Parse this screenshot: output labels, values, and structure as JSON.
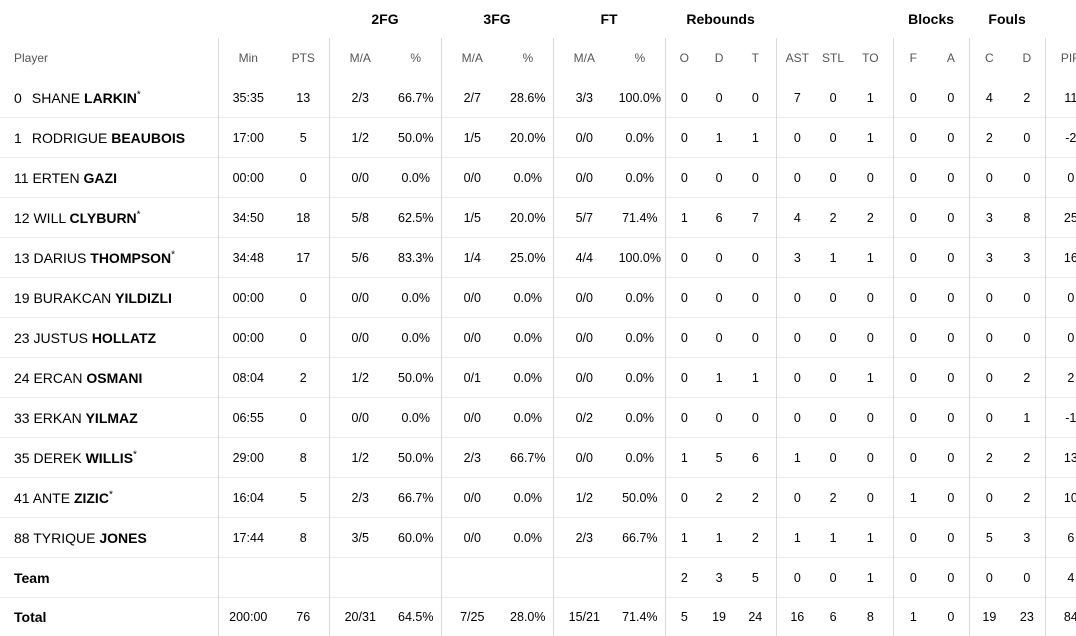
{
  "groups": {
    "fg2": "2FG",
    "fg3": "3FG",
    "ft": "FT",
    "reb": "Rebounds",
    "blk": "Blocks",
    "fouls": "Fouls"
  },
  "columns": {
    "player": "Player",
    "min": "Min",
    "pts": "PTS",
    "fg2_ma": "M/A",
    "fg2_pct": "%",
    "fg3_ma": "M/A",
    "fg3_pct": "%",
    "ft_ma": "M/A",
    "ft_pct": "%",
    "reb_o": "O",
    "reb_d": "D",
    "reb_t": "T",
    "ast": "AST",
    "stl": "STL",
    "to": "TO",
    "blk_f": "F",
    "blk_a": "A",
    "foul_c": "C",
    "foul_d": "D",
    "pir": "PIR"
  },
  "players": [
    {
      "number": "0",
      "first": "SHANE",
      "last": "LARKIN",
      "star": "*",
      "min": "35:35",
      "pts": "13",
      "fg2_ma": "2/3",
      "fg2_pct": "66.7%",
      "fg3_ma": "2/7",
      "fg3_pct": "28.6%",
      "ft_ma": "3/3",
      "ft_pct": "100.0%",
      "reb_o": "0",
      "reb_d": "0",
      "reb_t": "0",
      "ast": "7",
      "stl": "0",
      "to": "1",
      "blk_f": "0",
      "blk_a": "0",
      "foul_c": "4",
      "foul_d": "2",
      "pir": "11"
    },
    {
      "number": "1",
      "first": "RODRIGUE",
      "last": "BEAUBOIS",
      "star": "",
      "min": "17:00",
      "pts": "5",
      "fg2_ma": "1/2",
      "fg2_pct": "50.0%",
      "fg3_ma": "1/5",
      "fg3_pct": "20.0%",
      "ft_ma": "0/0",
      "ft_pct": "0.0%",
      "reb_o": "0",
      "reb_d": "1",
      "reb_t": "1",
      "ast": "0",
      "stl": "0",
      "to": "1",
      "blk_f": "0",
      "blk_a": "0",
      "foul_c": "2",
      "foul_d": "0",
      "pir": "-2"
    },
    {
      "number": "11",
      "first": "ERTEN",
      "last": "GAZI",
      "star": "",
      "min": "00:00",
      "pts": "0",
      "fg2_ma": "0/0",
      "fg2_pct": "0.0%",
      "fg3_ma": "0/0",
      "fg3_pct": "0.0%",
      "ft_ma": "0/0",
      "ft_pct": "0.0%",
      "reb_o": "0",
      "reb_d": "0",
      "reb_t": "0",
      "ast": "0",
      "stl": "0",
      "to": "0",
      "blk_f": "0",
      "blk_a": "0",
      "foul_c": "0",
      "foul_d": "0",
      "pir": "0"
    },
    {
      "number": "12",
      "first": "WILL",
      "last": "CLYBURN",
      "star": "*",
      "min": "34:50",
      "pts": "18",
      "fg2_ma": "5/8",
      "fg2_pct": "62.5%",
      "fg3_ma": "1/5",
      "fg3_pct": "20.0%",
      "ft_ma": "5/7",
      "ft_pct": "71.4%",
      "reb_o": "1",
      "reb_d": "6",
      "reb_t": "7",
      "ast": "4",
      "stl": "2",
      "to": "2",
      "blk_f": "0",
      "blk_a": "0",
      "foul_c": "3",
      "foul_d": "8",
      "pir": "25"
    },
    {
      "number": "13",
      "first": "DARIUS",
      "last": "THOMPSON",
      "star": "*",
      "min": "34:48",
      "pts": "17",
      "fg2_ma": "5/6",
      "fg2_pct": "83.3%",
      "fg3_ma": "1/4",
      "fg3_pct": "25.0%",
      "ft_ma": "4/4",
      "ft_pct": "100.0%",
      "reb_o": "0",
      "reb_d": "0",
      "reb_t": "0",
      "ast": "3",
      "stl": "1",
      "to": "1",
      "blk_f": "0",
      "blk_a": "0",
      "foul_c": "3",
      "foul_d": "3",
      "pir": "16"
    },
    {
      "number": "19",
      "first": "BURAKCAN",
      "last": "YILDIZLI",
      "star": "",
      "min": "00:00",
      "pts": "0",
      "fg2_ma": "0/0",
      "fg2_pct": "0.0%",
      "fg3_ma": "0/0",
      "fg3_pct": "0.0%",
      "ft_ma": "0/0",
      "ft_pct": "0.0%",
      "reb_o": "0",
      "reb_d": "0",
      "reb_t": "0",
      "ast": "0",
      "stl": "0",
      "to": "0",
      "blk_f": "0",
      "blk_a": "0",
      "foul_c": "0",
      "foul_d": "0",
      "pir": "0"
    },
    {
      "number": "23",
      "first": "JUSTUS",
      "last": "HOLLATZ",
      "star": "",
      "min": "00:00",
      "pts": "0",
      "fg2_ma": "0/0",
      "fg2_pct": "0.0%",
      "fg3_ma": "0/0",
      "fg3_pct": "0.0%",
      "ft_ma": "0/0",
      "ft_pct": "0.0%",
      "reb_o": "0",
      "reb_d": "0",
      "reb_t": "0",
      "ast": "0",
      "stl": "0",
      "to": "0",
      "blk_f": "0",
      "blk_a": "0",
      "foul_c": "0",
      "foul_d": "0",
      "pir": "0"
    },
    {
      "number": "24",
      "first": "ERCAN",
      "last": "OSMANI",
      "star": "",
      "min": "08:04",
      "pts": "2",
      "fg2_ma": "1/2",
      "fg2_pct": "50.0%",
      "fg3_ma": "0/1",
      "fg3_pct": "0.0%",
      "ft_ma": "0/0",
      "ft_pct": "0.0%",
      "reb_o": "0",
      "reb_d": "1",
      "reb_t": "1",
      "ast": "0",
      "stl": "0",
      "to": "1",
      "blk_f": "0",
      "blk_a": "0",
      "foul_c": "0",
      "foul_d": "2",
      "pir": "2"
    },
    {
      "number": "33",
      "first": "ERKAN",
      "last": "YILMAZ",
      "star": "",
      "min": "06:55",
      "pts": "0",
      "fg2_ma": "0/0",
      "fg2_pct": "0.0%",
      "fg3_ma": "0/0",
      "fg3_pct": "0.0%",
      "ft_ma": "0/2",
      "ft_pct": "0.0%",
      "reb_o": "0",
      "reb_d": "0",
      "reb_t": "0",
      "ast": "0",
      "stl": "0",
      "to": "0",
      "blk_f": "0",
      "blk_a": "0",
      "foul_c": "0",
      "foul_d": "1",
      "pir": "-1"
    },
    {
      "number": "35",
      "first": "DEREK",
      "last": "WILLIS",
      "star": "*",
      "min": "29:00",
      "pts": "8",
      "fg2_ma": "1/2",
      "fg2_pct": "50.0%",
      "fg3_ma": "2/3",
      "fg3_pct": "66.7%",
      "ft_ma": "0/0",
      "ft_pct": "0.0%",
      "reb_o": "1",
      "reb_d": "5",
      "reb_t": "6",
      "ast": "1",
      "stl": "0",
      "to": "0",
      "blk_f": "0",
      "blk_a": "0",
      "foul_c": "2",
      "foul_d": "2",
      "pir": "13"
    },
    {
      "number": "41",
      "first": "ANTE",
      "last": "ZIZIC",
      "star": "*",
      "min": "16:04",
      "pts": "5",
      "fg2_ma": "2/3",
      "fg2_pct": "66.7%",
      "fg3_ma": "0/0",
      "fg3_pct": "0.0%",
      "ft_ma": "1/2",
      "ft_pct": "50.0%",
      "reb_o": "0",
      "reb_d": "2",
      "reb_t": "2",
      "ast": "0",
      "stl": "2",
      "to": "0",
      "blk_f": "1",
      "blk_a": "0",
      "foul_c": "0",
      "foul_d": "2",
      "pir": "10"
    },
    {
      "number": "88",
      "first": "TYRIQUE",
      "last": "JONES",
      "star": "",
      "min": "17:44",
      "pts": "8",
      "fg2_ma": "3/5",
      "fg2_pct": "60.0%",
      "fg3_ma": "0/0",
      "fg3_pct": "0.0%",
      "ft_ma": "2/3",
      "ft_pct": "66.7%",
      "reb_o": "1",
      "reb_d": "1",
      "reb_t": "2",
      "ast": "1",
      "stl": "1",
      "to": "1",
      "blk_f": "0",
      "blk_a": "0",
      "foul_c": "5",
      "foul_d": "3",
      "pir": "6"
    }
  ],
  "team": {
    "label": "Team",
    "min": "",
    "pts": "",
    "fg2_ma": "",
    "fg2_pct": "",
    "fg3_ma": "",
    "fg3_pct": "",
    "ft_ma": "",
    "ft_pct": "",
    "reb_o": "2",
    "reb_d": "3",
    "reb_t": "5",
    "ast": "0",
    "stl": "0",
    "to": "1",
    "blk_f": "0",
    "blk_a": "0",
    "foul_c": "0",
    "foul_d": "0",
    "pir": "4"
  },
  "total": {
    "label": "Total",
    "min": "200:00",
    "pts": "76",
    "fg2_ma": "20/31",
    "fg2_pct": "64.5%",
    "fg3_ma": "7/25",
    "fg3_pct": "28.0%",
    "ft_ma": "15/21",
    "ft_pct": "71.4%",
    "reb_o": "5",
    "reb_d": "19",
    "reb_t": "24",
    "ast": "16",
    "stl": "6",
    "to": "8",
    "blk_f": "1",
    "blk_a": "0",
    "foul_c": "19",
    "foul_d": "23",
    "pir": "84"
  }
}
